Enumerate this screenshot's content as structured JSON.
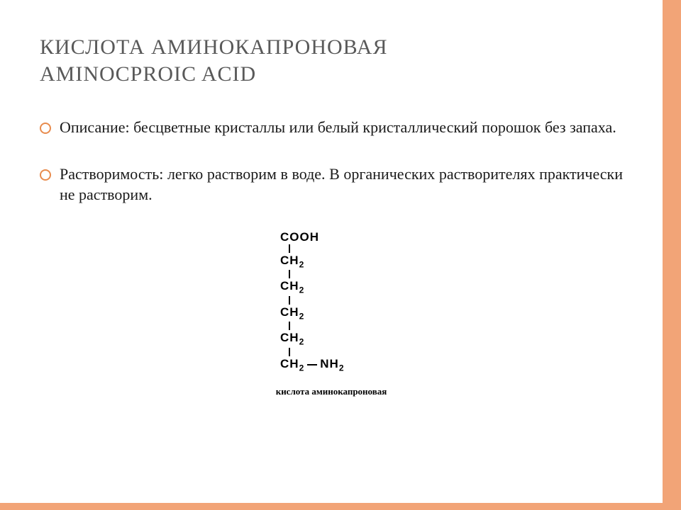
{
  "title_line1": "КИСЛОТА АМИНОКАПРОНОВАЯ",
  "title_line2": "AMINOCPROIC ACID",
  "bullets": [
    "Описание: бесцветные кристаллы или белый кристаллический порошок без запаха.",
    "Растворимость: легко растворим в воде. В органических растворителях практически не растворим."
  ],
  "formula": {
    "groups": [
      "COOH",
      "CH",
      "CH",
      "CH",
      "CH",
      "CH"
    ],
    "subscript": "2",
    "tail": "NH",
    "tail_sub": "2"
  },
  "caption": "кислота аминокапроновая",
  "style": {
    "page_bg": "#ffffff",
    "band_color": "#f2a477",
    "right_band_w": 26,
    "bottom_band_h": 10,
    "title_color": "#595959",
    "title_fontsize": 30,
    "title_letter_spacing": 1,
    "body_color": "#1a1a1a",
    "body_fontsize": 22,
    "bullet_ring_color": "#e88b4d",
    "bullet_ring_diameter": 12,
    "bullet_ring_border": 2,
    "formula_font": "Arial",
    "formula_weight": 700,
    "caption_fontsize": 13
  }
}
